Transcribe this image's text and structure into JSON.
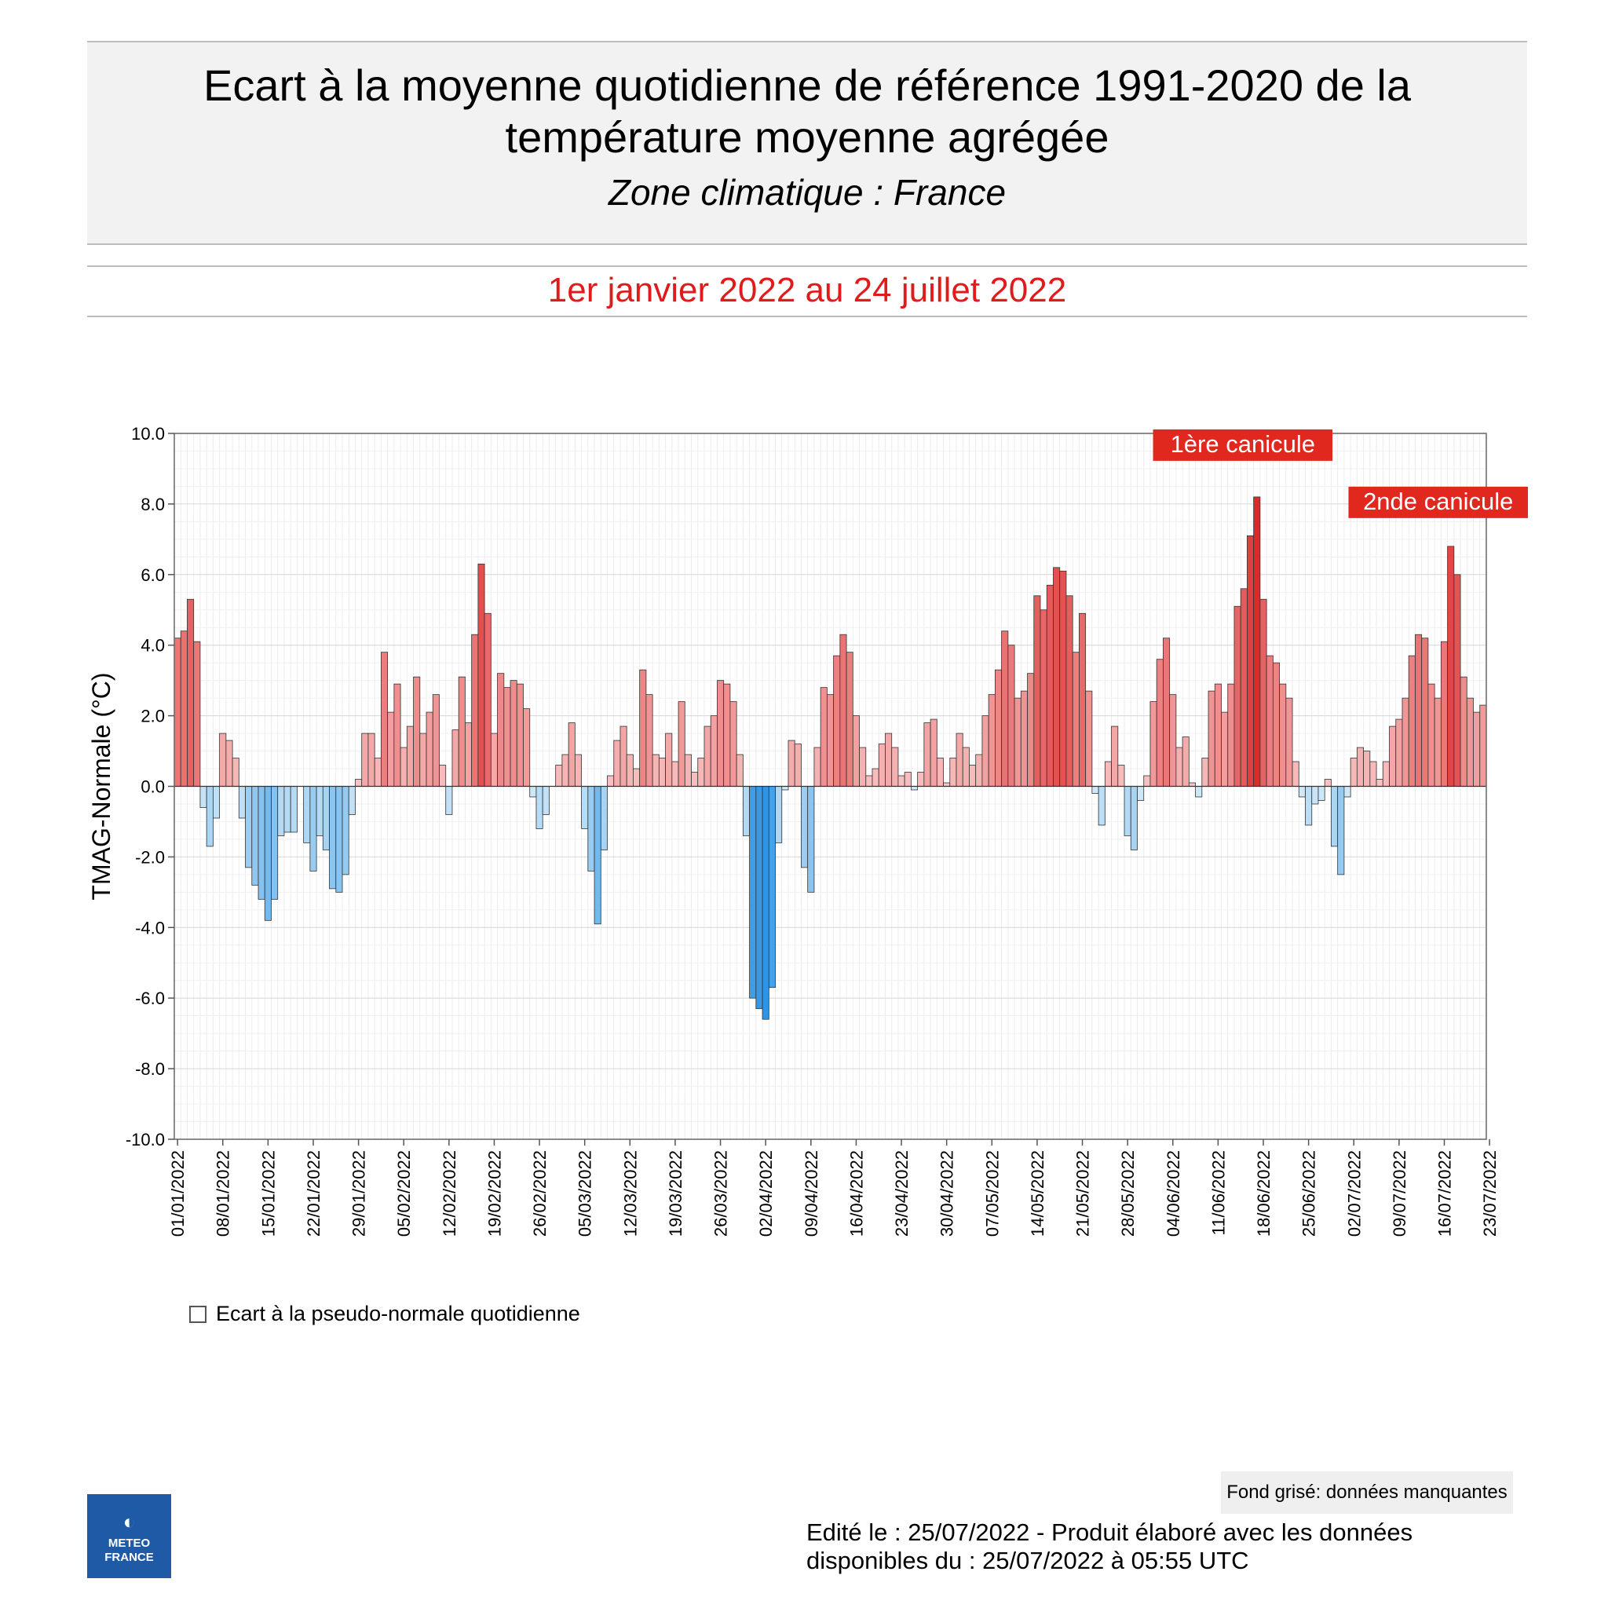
{
  "header": {
    "title_line1": "Ecart à la moyenne quotidienne de référence 1991-2020 de la",
    "title_line2": "température moyenne  agrégée",
    "subtitle": "Zone climatique : France",
    "period": "1er janvier 2022 au 24 juillet 2022"
  },
  "legend": {
    "label": "Ecart à la pseudo-normale quotidienne"
  },
  "footer": {
    "missing_note": "Fond grisé: données manquantes",
    "edited_line1": "Edité le : 25/07/2022 - Produit élaboré avec les données",
    "edited_line2": "disponibles du : 25/07/2022 à 05:55 UTC",
    "logo_line1": "METEO",
    "logo_line2": "FRANCE"
  },
  "chart_data": {
    "type": "bar",
    "ylabel": "TMAG-Normale (°C)",
    "ylim": [
      -10,
      10
    ],
    "yticks": [
      "10.0",
      "8.0",
      "6.0",
      "4.0",
      "2.0",
      "0.0",
      "-2.0",
      "-4.0",
      "-6.0",
      "-8.0",
      "-10.0"
    ],
    "start_date": "01/01/2022",
    "xtick_labels": [
      "01/01/2022",
      "08/01/2022",
      "15/01/2022",
      "22/01/2022",
      "29/01/2022",
      "05/02/2022",
      "12/02/2022",
      "19/02/2022",
      "26/02/2022",
      "05/03/2022",
      "12/03/2022",
      "19/03/2022",
      "26/03/2022",
      "02/04/2022",
      "09/04/2022",
      "16/04/2022",
      "23/04/2022",
      "30/04/2022",
      "07/05/2022",
      "14/05/2022",
      "21/05/2022",
      "28/05/2022",
      "04/06/2022",
      "11/06/2022",
      "18/06/2022",
      "25/06/2022",
      "02/07/2022",
      "09/07/2022",
      "16/07/2022",
      "23/07/2022"
    ],
    "grid": true,
    "colors": {
      "positive_light": "#f9c6c6",
      "positive_dark": "#dc2a2a",
      "negative_light": "#d6ecf8",
      "negative_dark": "#2e95e6"
    },
    "values": [
      4.2,
      4.4,
      5.3,
      4.1,
      -0.6,
      -1.7,
      -0.9,
      1.5,
      1.3,
      0.8,
      -0.9,
      -2.3,
      -2.8,
      -3.2,
      -3.8,
      -3.2,
      -1.4,
      -1.3,
      -1.3,
      0.0,
      -1.6,
      -2.4,
      -1.4,
      -1.8,
      -2.9,
      -3.0,
      -2.5,
      -0.8,
      0.2,
      1.5,
      1.5,
      0.8,
      3.8,
      2.1,
      2.9,
      1.1,
      1.7,
      3.1,
      1.5,
      2.1,
      2.6,
      0.6,
      -0.8,
      1.6,
      3.1,
      1.8,
      4.3,
      6.3,
      4.9,
      1.5,
      3.2,
      2.8,
      3.0,
      2.9,
      2.2,
      -0.3,
      -1.2,
      -0.8,
      0.0,
      0.6,
      0.9,
      1.8,
      0.9,
      -1.2,
      -2.4,
      -3.9,
      -1.8,
      0.3,
      1.3,
      1.7,
      0.9,
      0.5,
      3.3,
      2.6,
      0.9,
      0.8,
      1.5,
      0.7,
      2.4,
      0.9,
      0.4,
      0.8,
      1.7,
      2.0,
      3.0,
      2.9,
      2.4,
      0.9,
      -1.4,
      -6.0,
      -6.3,
      -6.6,
      -5.7,
      -1.6,
      -0.1,
      1.3,
      1.2,
      -2.3,
      -3.0,
      1.1,
      2.8,
      2.6,
      3.7,
      4.3,
      3.8,
      2.0,
      1.1,
      0.3,
      0.5,
      1.2,
      1.5,
      1.1,
      0.3,
      0.4,
      -0.1,
      0.4,
      1.8,
      1.9,
      0.8,
      0.1,
      0.8,
      1.5,
      1.1,
      0.6,
      0.9,
      2.0,
      2.6,
      3.3,
      4.4,
      4.0,
      2.5,
      2.7,
      3.2,
      5.4,
      5.0,
      5.7,
      6.2,
      6.1,
      5.4,
      3.8,
      4.9,
      2.7,
      -0.2,
      -1.1,
      0.7,
      1.7,
      0.6,
      -1.4,
      -1.8,
      -0.4,
      0.3,
      2.4,
      3.6,
      4.2,
      2.6,
      1.1,
      1.4,
      0.1,
      -0.3,
      0.8,
      2.7,
      2.9,
      2.1,
      2.9,
      5.1,
      5.6,
      7.1,
      8.2,
      5.3,
      3.7,
      3.5,
      2.9,
      2.5,
      0.7,
      -0.3,
      -1.1,
      -0.5,
      -0.4,
      0.2,
      -1.7,
      -2.5,
      -0.3,
      0.8,
      1.1,
      1.0,
      0.7,
      0.2,
      0.7,
      1.7,
      1.9,
      2.5,
      3.7,
      4.3,
      4.2,
      2.9,
      2.5,
      4.1,
      6.8,
      6.0,
      3.1,
      2.5,
      2.1,
      2.3
    ],
    "annotations": [
      {
        "text": "1ère canicule"
      },
      {
        "text": "2nde canicule"
      }
    ]
  }
}
